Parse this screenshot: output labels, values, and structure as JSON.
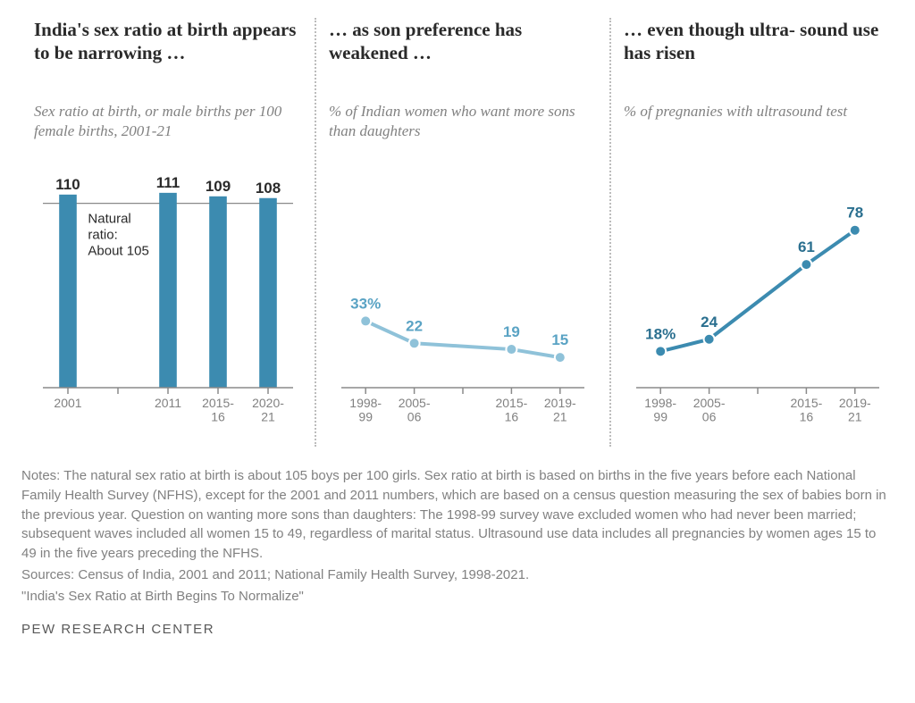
{
  "panels": [
    {
      "title": "India's sex ratio at birth appears to be narrowing …",
      "subtitle": "Sex ratio at birth, or male births per 100 female births, 2001-21",
      "type": "bar",
      "bar_color": "#3c8bb0",
      "natural_line_value": 105,
      "natural_line_label1": "Natural",
      "natural_line_label2": "ratio:",
      "natural_line_label3": "About 105",
      "natural_line_color": "#8a8a8a",
      "y_min": 0,
      "y_max": 115,
      "ticks": [
        "2001",
        "",
        "2011",
        "2015-\n16",
        "2020-\n21"
      ],
      "bars": [
        {
          "x": 0,
          "value": 110,
          "label": "110"
        },
        {
          "x": 2,
          "value": 111,
          "label": "111"
        },
        {
          "x": 3,
          "value": 109,
          "label": "109"
        },
        {
          "x": 4,
          "value": 108,
          "label": "108"
        }
      ]
    },
    {
      "title": "… as son preference has weakened …",
      "subtitle": "% of Indian women who want more sons than daughters",
      "type": "line",
      "line_color": "#8fc2d9",
      "marker_color": "#8fc2d9",
      "label_color": "#5aa3c4",
      "y_min": 0,
      "y_max": 100,
      "ticks": [
        "1998-\n99",
        "2005-\n06",
        "",
        "2015-\n16",
        "2019-\n21"
      ],
      "points": [
        {
          "x": 0,
          "value": 33,
          "label": "33%"
        },
        {
          "x": 1,
          "value": 22,
          "label": "22"
        },
        {
          "x": 3,
          "value": 19,
          "label": "19"
        },
        {
          "x": 4,
          "value": 15,
          "label": "15"
        }
      ]
    },
    {
      "title": "… even though ultra-\nsound use has risen",
      "subtitle": "% of pregnanies\nwith ultrasound test",
      "type": "line",
      "line_color": "#3c8bb0",
      "marker_color": "#3c8bb0",
      "label_color": "#2a6f8f",
      "y_min": 0,
      "y_max": 100,
      "ticks": [
        "1998-\n99",
        "2005-\n06",
        "",
        "2015-\n16",
        "2019-\n21"
      ],
      "points": [
        {
          "x": 0,
          "value": 18,
          "label": "18%"
        },
        {
          "x": 1,
          "value": 24,
          "label": "24"
        },
        {
          "x": 3,
          "value": 61,
          "label": "61"
        },
        {
          "x": 4,
          "value": 78,
          "label": "78"
        }
      ]
    }
  ],
  "notes": {
    "line1": "Notes: The natural sex ratio at birth is about 105 boys per 100 girls. Sex ratio at birth is based on births in the five years before each National Family Health Survey (NFHS), except for the 2001 and 2011 numbers, which are based on a census question measuring the sex of babies born in the previous year. Question on wanting more sons than daughters: The 1998-99 survey wave excluded women who had never been married; subsequent waves included all women 15 to 49, regardless of marital status. Ultrasound use data includes all pregnancies by women ages 15 to 49 in the five years preceding the NFHS.",
    "line2": "Sources: Census of India, 2001 and 2011; National Family Health Survey, 1998-2021.",
    "line3": "\"India's Sex Ratio at Birth Begins To Normalize\""
  },
  "brand": "PEW RESEARCH CENTER"
}
